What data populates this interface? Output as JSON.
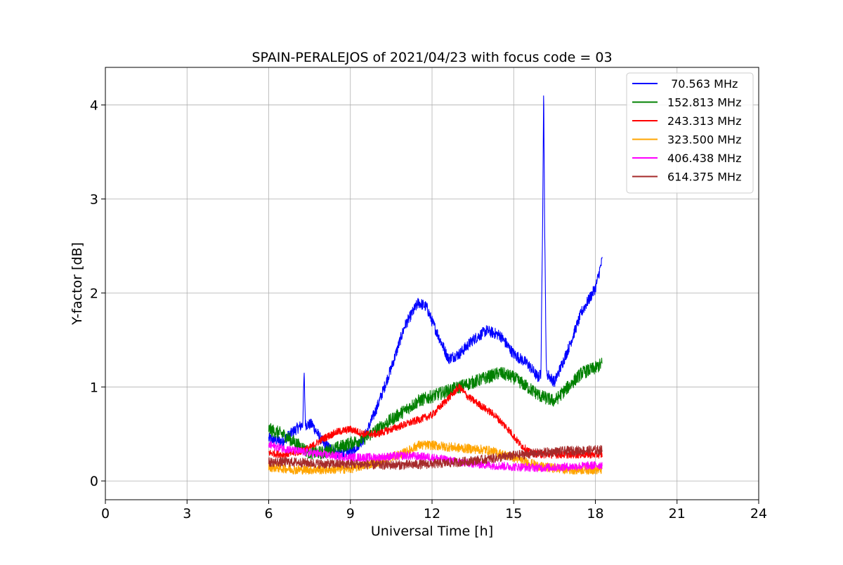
{
  "chart_data": {
    "type": "line",
    "title": "SPAIN-PERALEJOS of 2021/04/23 with focus code = 03",
    "xlabel": "Universal Time [h]",
    "ylabel": "Y-factor [dB]",
    "xlim": [
      0,
      24
    ],
    "ylim": [
      -0.2,
      4.4
    ],
    "xticks": [
      0,
      3,
      6,
      9,
      12,
      15,
      18,
      21,
      24
    ],
    "xtick_labels": [
      "0",
      "3",
      "6",
      "9",
      "12",
      "15",
      "18",
      "21",
      "24"
    ],
    "yticks": [
      0,
      1,
      2,
      3,
      4
    ],
    "ytick_labels": [
      "0",
      "1",
      "2",
      "3",
      "4"
    ],
    "grid": true,
    "legend_position": "top-right",
    "series": [
      {
        "name": " 70.563 MHz",
        "color": "#0000ff",
        "noise": 0.06,
        "points": [
          [
            6.0,
            0.45
          ],
          [
            6.5,
            0.42
          ],
          [
            7.0,
            0.55
          ],
          [
            7.25,
            0.6
          ],
          [
            7.3,
            1.15
          ],
          [
            7.35,
            0.6
          ],
          [
            7.6,
            0.6
          ],
          [
            7.8,
            0.5
          ],
          [
            8.0,
            0.4
          ],
          [
            8.5,
            0.3
          ],
          [
            9.0,
            0.3
          ],
          [
            9.5,
            0.45
          ],
          [
            10.0,
            0.8
          ],
          [
            10.5,
            1.2
          ],
          [
            11.0,
            1.65
          ],
          [
            11.5,
            1.9
          ],
          [
            11.8,
            1.85
          ],
          [
            12.0,
            1.7
          ],
          [
            12.3,
            1.5
          ],
          [
            12.6,
            1.3
          ],
          [
            13.0,
            1.35
          ],
          [
            13.5,
            1.5
          ],
          [
            14.0,
            1.6
          ],
          [
            14.5,
            1.55
          ],
          [
            15.0,
            1.35
          ],
          [
            15.5,
            1.25
          ],
          [
            15.9,
            1.1
          ],
          [
            16.0,
            1.15
          ],
          [
            16.06,
            2.7
          ],
          [
            16.1,
            4.2
          ],
          [
            16.14,
            2.6
          ],
          [
            16.2,
            1.15
          ],
          [
            16.5,
            1.05
          ],
          [
            17.0,
            1.4
          ],
          [
            17.5,
            1.8
          ],
          [
            18.0,
            2.05
          ],
          [
            18.25,
            2.35
          ]
        ]
      },
      {
        "name": "152.813 MHz",
        "color": "#008000",
        "noise": 0.07,
        "points": [
          [
            6.0,
            0.55
          ],
          [
            6.5,
            0.5
          ],
          [
            7.0,
            0.4
          ],
          [
            7.5,
            0.3
          ],
          [
            8.0,
            0.3
          ],
          [
            8.5,
            0.35
          ],
          [
            9.0,
            0.4
          ],
          [
            9.5,
            0.45
          ],
          [
            10.0,
            0.55
          ],
          [
            10.5,
            0.65
          ],
          [
            11.0,
            0.75
          ],
          [
            11.5,
            0.85
          ],
          [
            12.0,
            0.9
          ],
          [
            12.5,
            0.95
          ],
          [
            13.0,
            1.0
          ],
          [
            13.5,
            1.05
          ],
          [
            14.0,
            1.1
          ],
          [
            14.5,
            1.15
          ],
          [
            15.0,
            1.1
          ],
          [
            15.5,
            1.0
          ],
          [
            16.0,
            0.9
          ],
          [
            16.5,
            0.85
          ],
          [
            17.0,
            1.0
          ],
          [
            17.5,
            1.15
          ],
          [
            18.0,
            1.2
          ],
          [
            18.25,
            1.25
          ]
        ]
      },
      {
        "name": "243.313 MHz",
        "color": "#ff0000",
        "noise": 0.04,
        "points": [
          [
            6.0,
            0.3
          ],
          [
            6.5,
            0.28
          ],
          [
            7.0,
            0.3
          ],
          [
            7.5,
            0.35
          ],
          [
            8.0,
            0.45
          ],
          [
            8.5,
            0.52
          ],
          [
            9.0,
            0.55
          ],
          [
            9.5,
            0.5
          ],
          [
            10.0,
            0.5
          ],
          [
            10.5,
            0.55
          ],
          [
            11.0,
            0.6
          ],
          [
            11.5,
            0.65
          ],
          [
            12.0,
            0.7
          ],
          [
            12.5,
            0.85
          ],
          [
            13.0,
            1.0
          ],
          [
            13.3,
            0.9
          ],
          [
            13.8,
            0.8
          ],
          [
            14.3,
            0.7
          ],
          [
            14.8,
            0.55
          ],
          [
            15.2,
            0.4
          ],
          [
            15.6,
            0.3
          ],
          [
            16.0,
            0.28
          ],
          [
            17.0,
            0.28
          ],
          [
            18.25,
            0.28
          ]
        ]
      },
      {
        "name": "323.500 MHz",
        "color": "#ffa500",
        "noise": 0.05,
        "points": [
          [
            6.0,
            0.15
          ],
          [
            7.0,
            0.12
          ],
          [
            8.0,
            0.12
          ],
          [
            9.0,
            0.13
          ],
          [
            10.0,
            0.2
          ],
          [
            11.0,
            0.3
          ],
          [
            11.5,
            0.38
          ],
          [
            12.0,
            0.38
          ],
          [
            13.0,
            0.35
          ],
          [
            14.0,
            0.33
          ],
          [
            15.0,
            0.25
          ],
          [
            16.0,
            0.15
          ],
          [
            17.0,
            0.12
          ],
          [
            18.25,
            0.12
          ]
        ]
      },
      {
        "name": "406.438 MHz",
        "color": "#ff00ff",
        "noise": 0.045,
        "points": [
          [
            6.0,
            0.38
          ],
          [
            6.5,
            0.35
          ],
          [
            7.0,
            0.32
          ],
          [
            8.0,
            0.28
          ],
          [
            9.0,
            0.25
          ],
          [
            10.0,
            0.25
          ],
          [
            11.0,
            0.27
          ],
          [
            12.0,
            0.25
          ],
          [
            13.0,
            0.2
          ],
          [
            14.0,
            0.17
          ],
          [
            15.0,
            0.15
          ],
          [
            16.0,
            0.14
          ],
          [
            17.0,
            0.15
          ],
          [
            18.25,
            0.17
          ]
        ]
      },
      {
        "name": "614.375 MHz",
        "color": "#a52a2a",
        "noise": 0.05,
        "points": [
          [
            6.0,
            0.2
          ],
          [
            7.0,
            0.2
          ],
          [
            8.0,
            0.18
          ],
          [
            9.0,
            0.18
          ],
          [
            10.0,
            0.17
          ],
          [
            11.0,
            0.17
          ],
          [
            12.0,
            0.18
          ],
          [
            13.0,
            0.2
          ],
          [
            14.0,
            0.23
          ],
          [
            15.0,
            0.27
          ],
          [
            16.0,
            0.3
          ],
          [
            17.0,
            0.32
          ],
          [
            18.25,
            0.33
          ]
        ]
      }
    ]
  }
}
